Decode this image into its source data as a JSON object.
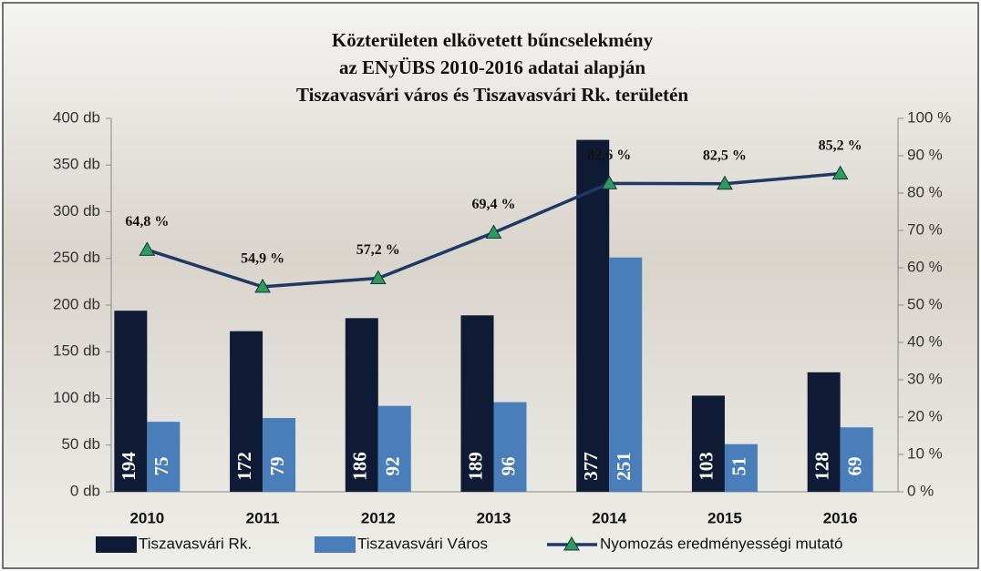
{
  "chart_data": {
    "type": "bar",
    "title": [
      "Közterületen elkövetett bűncselekmény",
      "az ENyÜBS  2010-2016 adatai alapján",
      "Tiszavasvári város és Tiszavasvári Rk. területén"
    ],
    "categories": [
      "2010",
      "2011",
      "2012",
      "2013",
      "2014",
      "2015",
      "2016"
    ],
    "series": [
      {
        "name": "Tiszavasvári Rk.",
        "color": "#0f1b34",
        "values": [
          194,
          172,
          186,
          189,
          377,
          103,
          128
        ]
      },
      {
        "name": "Tiszavasvári Város",
        "color": "#4a7ebb",
        "values": [
          75,
          79,
          92,
          96,
          251,
          51,
          69
        ]
      },
      {
        "name": "Nyomozás eredményességi mutató",
        "type": "line",
        "axis": "y2",
        "color": "#1f3864",
        "marker_color": "#2e9b5a",
        "values": [
          64.8,
          54.9,
          57.2,
          69.4,
          82.6,
          82.5,
          85.2
        ],
        "value_labels": [
          "64,8 %",
          "54,9 %",
          "57,2 %",
          "69,4 %",
          "82,6 %",
          "82,5 %",
          "85,2 %"
        ]
      }
    ],
    "ylim": [
      0,
      400
    ],
    "yticks": [
      {
        "value": 0,
        "label": "0 db"
      },
      {
        "value": 50,
        "label": "50 db"
      },
      {
        "value": 100,
        "label": "100 db"
      },
      {
        "value": 150,
        "label": "150 db"
      },
      {
        "value": 200,
        "label": "200 db"
      },
      {
        "value": 250,
        "label": "250 db"
      },
      {
        "value": 300,
        "label": "300 db"
      },
      {
        "value": 350,
        "label": "350 db"
      },
      {
        "value": 400,
        "label": "400 db"
      }
    ],
    "y2lim": [
      0,
      100
    ],
    "y2ticks": [
      {
        "value": 0,
        "label": "0 %"
      },
      {
        "value": 10,
        "label": "10 %"
      },
      {
        "value": 20,
        "label": "20 %"
      },
      {
        "value": 30,
        "label": "30 %"
      },
      {
        "value": 40,
        "label": "40 %"
      },
      {
        "value": 50,
        "label": "50 %"
      },
      {
        "value": 60,
        "label": "60 %"
      },
      {
        "value": 70,
        "label": "70 %"
      },
      {
        "value": 80,
        "label": "80 %"
      },
      {
        "value": 90,
        "label": "90 %"
      },
      {
        "value": 100,
        "label": "100 %"
      }
    ]
  }
}
